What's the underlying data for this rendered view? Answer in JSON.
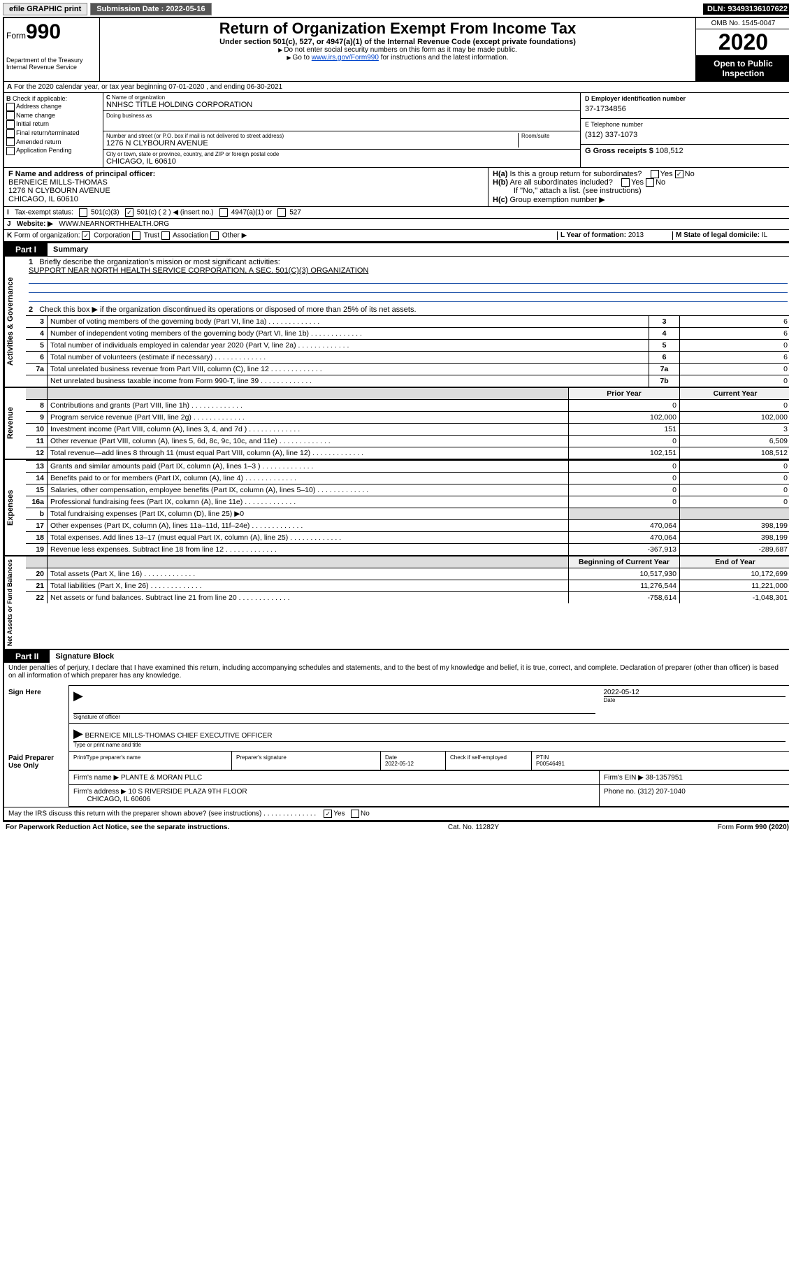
{
  "topbar": {
    "efile": "efile GRAPHIC print",
    "sub_label": "Submission Date : 2022-05-16",
    "dln": "DLN: 93493136107622"
  },
  "hdr": {
    "form_word": "Form",
    "form_num": "990",
    "dept": "Department of the Treasury\nInternal Revenue Service",
    "title": "Return of Organization Exempt From Income Tax",
    "sub": "Under section 501(c), 527, or 4947(a)(1) of the Internal Revenue Code (except private foundations)",
    "inst1": "Do not enter social security numbers on this form as it may be made public.",
    "inst2_pre": "Go to ",
    "inst2_link": "www.irs.gov/Form990",
    "inst2_post": " for instructions and the latest information.",
    "omb": "OMB No. 1545-0047",
    "year": "2020",
    "open": "Open to Public Inspection"
  },
  "rowA": "For the 2020 calendar year, or tax year beginning 07-01-2020   , and ending 06-30-2021",
  "colB": {
    "label": "Check if applicable:",
    "items": [
      "Address change",
      "Name change",
      "Initial return",
      "Final return/terminated",
      "Amended return",
      "Application Pending"
    ]
  },
  "colC": {
    "name_lbl": "Name of organization",
    "name": "NNHSC TITLE HOLDING CORPORATION",
    "dba_lbl": "Doing business as",
    "addr_lbl": "Number and street (or P.O. box if mail is not delivered to street address)",
    "addr": "1276 N CLYBOURN AVENUE",
    "room_lbl": "Room/suite",
    "city_lbl": "City or town, state or province, country, and ZIP or foreign postal code",
    "city": "CHICAGO, IL  60610"
  },
  "colD": {
    "ein_lbl": "D Employer identification number",
    "ein": "37-1734856",
    "tel_lbl": "E Telephone number",
    "tel": "(312) 337-1073",
    "gross_lbl": "G Gross receipts $ ",
    "gross": "108,512"
  },
  "colF": {
    "lbl": "F  Name and address of principal officer:",
    "name": "BERNEICE MILLS-THOMAS",
    "addr1": "1276 N CLYBOURN AVENUE",
    "addr2": "CHICAGO, IL  60610"
  },
  "colH": {
    "a": "Is this a group return for subordinates?",
    "b": "Are all subordinates included?",
    "b_note": "If \"No,\" attach a list. (see instructions)",
    "c": "Group exemption number ▶"
  },
  "rowI": {
    "lbl": "Tax-exempt status:",
    "o1": "501(c)(3)",
    "o2": "501(c) ( 2 ) ◀ (insert no.)",
    "o3": "4947(a)(1) or",
    "o4": "527"
  },
  "rowJ": {
    "lbl": "Website: ▶",
    "val": "WWW.NEARNORTHHEALTH.ORG"
  },
  "rowK": {
    "lbl": "Form of organization:",
    "o1": "Corporation",
    "o2": "Trust",
    "o3": "Association",
    "o4": "Other ▶",
    "L_lbl": "L Year of formation: ",
    "L_val": "2013",
    "M_lbl": "M State of legal domicile: ",
    "M_val": "IL"
  },
  "part1": {
    "tab": "Part I",
    "title": "Summary",
    "q1": "Briefly describe the organization's mission or most significant activities:",
    "q1_val": "SUPPORT NEAR NORTH HEALTH SERVICE CORPORATION, A SEC. 501(C)(3) ORGANIZATION",
    "q2": "Check this box ▶      if the organization discontinued its operations or disposed of more than 25% of its net assets.",
    "rows_gov": [
      {
        "n": "3",
        "t": "Number of voting members of the governing body (Part VI, line 1a)",
        "b": "3",
        "v": "6"
      },
      {
        "n": "4",
        "t": "Number of independent voting members of the governing body (Part VI, line 1b)",
        "b": "4",
        "v": "6"
      },
      {
        "n": "5",
        "t": "Total number of individuals employed in calendar year 2020 (Part V, line 2a)",
        "b": "5",
        "v": "0"
      },
      {
        "n": "6",
        "t": "Total number of volunteers (estimate if necessary)",
        "b": "6",
        "v": "6"
      },
      {
        "n": "7a",
        "t": "Total unrelated business revenue from Part VIII, column (C), line 12",
        "b": "7a",
        "v": "0"
      },
      {
        "n": "",
        "t": "Net unrelated business taxable income from Form 990-T, line 39",
        "b": "7b",
        "v": "0"
      }
    ],
    "prior": "Prior Year",
    "curr": "Current Year",
    "rows_rev": [
      {
        "n": "8",
        "t": "Contributions and grants (Part VIII, line 1h)",
        "p": "0",
        "c": "0"
      },
      {
        "n": "9",
        "t": "Program service revenue (Part VIII, line 2g)",
        "p": "102,000",
        "c": "102,000"
      },
      {
        "n": "10",
        "t": "Investment income (Part VIII, column (A), lines 3, 4, and 7d )",
        "p": "151",
        "c": "3"
      },
      {
        "n": "11",
        "t": "Other revenue (Part VIII, column (A), lines 5, 6d, 8c, 9c, 10c, and 11e)",
        "p": "0",
        "c": "6,509"
      },
      {
        "n": "12",
        "t": "Total revenue—add lines 8 through 11 (must equal Part VIII, column (A), line 12)",
        "p": "102,151",
        "c": "108,512"
      }
    ],
    "rows_exp": [
      {
        "n": "13",
        "t": "Grants and similar amounts paid (Part IX, column (A), lines 1–3 )",
        "p": "0",
        "c": "0"
      },
      {
        "n": "14",
        "t": "Benefits paid to or for members (Part IX, column (A), line 4)",
        "p": "0",
        "c": "0"
      },
      {
        "n": "15",
        "t": "Salaries, other compensation, employee benefits (Part IX, column (A), lines 5–10)",
        "p": "0",
        "c": "0"
      },
      {
        "n": "16a",
        "t": "Professional fundraising fees (Part IX, column (A), line 11e)",
        "p": "0",
        "c": "0"
      },
      {
        "n": "b",
        "t": "Total fundraising expenses (Part IX, column (D), line 25) ▶0",
        "p": "",
        "c": "",
        "shade": true
      },
      {
        "n": "17",
        "t": "Other expenses (Part IX, column (A), lines 11a–11d, 11f–24e)",
        "p": "470,064",
        "c": "398,199"
      },
      {
        "n": "18",
        "t": "Total expenses. Add lines 13–17 (must equal Part IX, column (A), line 25)",
        "p": "470,064",
        "c": "398,199"
      },
      {
        "n": "19",
        "t": "Revenue less expenses. Subtract line 18 from line 12",
        "p": "-367,913",
        "c": "-289,687"
      }
    ],
    "beg": "Beginning of Current Year",
    "end": "End of Year",
    "rows_net": [
      {
        "n": "20",
        "t": "Total assets (Part X, line 16)",
        "p": "10,517,930",
        "c": "10,172,699"
      },
      {
        "n": "21",
        "t": "Total liabilities (Part X, line 26)",
        "p": "11,276,544",
        "c": "11,221,000"
      },
      {
        "n": "22",
        "t": "Net assets or fund balances. Subtract line 21 from line 20",
        "p": "-758,614",
        "c": "-1,048,301"
      }
    ],
    "side_gov": "Activities & Governance",
    "side_rev": "Revenue",
    "side_exp": "Expenses",
    "side_net": "Net Assets or Fund Balances"
  },
  "part2": {
    "tab": "Part II",
    "title": "Signature Block",
    "decl": "Under penalties of perjury, I declare that I have examined this return, including accompanying schedules and statements, and to the best of my knowledge and belief, it is true, correct, and complete. Declaration of preparer (other than officer) is based on all information of which preparer has any knowledge.",
    "sign_here": "Sign Here",
    "sig_of": "Signature of officer",
    "date": "Date",
    "date_v": "2022-05-12",
    "typed": "BERNEICE MILLS-THOMAS  CHIEF EXECUTIVE OFFICER",
    "typed_lbl": "Type or print name and title",
    "paid": "Paid Preparer Use Only",
    "prep_name_lbl": "Print/Type preparer's name",
    "prep_sig_lbl": "Preparer's signature",
    "prep_date_lbl": "Date",
    "prep_date": "2022-05-12",
    "check_lbl": "Check      if self-employed",
    "ptin_lbl": "PTIN",
    "ptin": "P00546491",
    "firm_name_lbl": "Firm's name    ▶",
    "firm_name": "PLANTE & MORAN PLLC",
    "firm_ein_lbl": "Firm's EIN ▶",
    "firm_ein": "38-1357951",
    "firm_addr_lbl": "Firm's address ▶",
    "firm_addr": "10 S RIVERSIDE PLAZA 9TH FLOOR",
    "firm_city": "CHICAGO, IL  60606",
    "phone_lbl": "Phone no. ",
    "phone": "(312) 207-1040",
    "discuss": "May the IRS discuss this return with the preparer shown above? (see instructions)",
    "yes": "Yes",
    "no": "No"
  },
  "footer": {
    "pra": "For Paperwork Reduction Act Notice, see the separate instructions.",
    "cat": "Cat. No. 11282Y",
    "form": "Form 990 (2020)"
  }
}
